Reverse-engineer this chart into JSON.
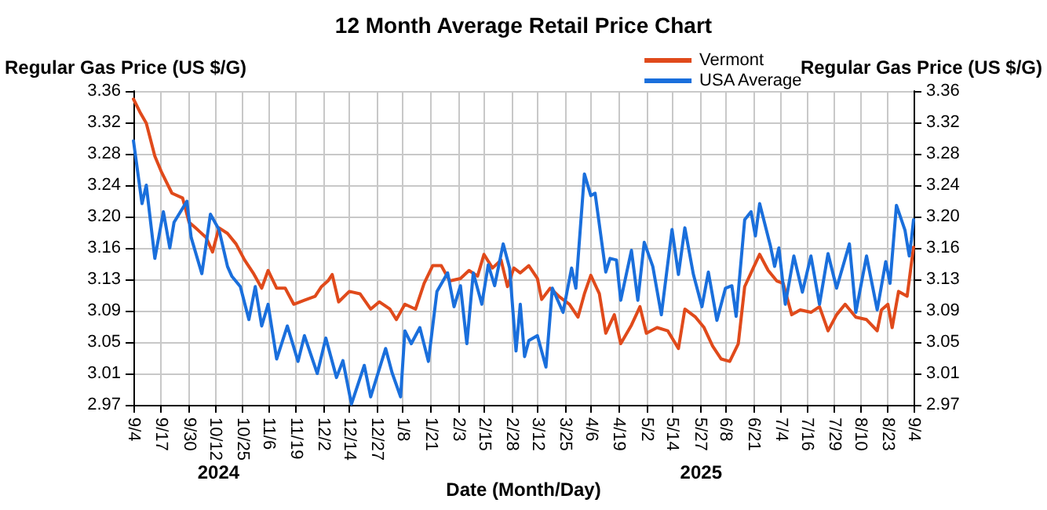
{
  "chart_data": {
    "type": "line",
    "title": "12 Month Average Retail Price Chart",
    "xlabel": "Date (Month/Day)",
    "ylabel": "Regular Gas Price (US $/G)",
    "y2label": "Regular Gas Price (US $/G)",
    "annotations": [
      "2024",
      "2025"
    ],
    "xlim": [
      "2024-09-04",
      "2025-09-04"
    ],
    "xticks": [
      {
        "value": "2024-09-04",
        "label": "9/4"
      },
      {
        "value": "2024-09-17",
        "label": "9/17"
      },
      {
        "value": "2024-09-30",
        "label": "9/30"
      },
      {
        "value": "2024-10-12",
        "label": "10/12"
      },
      {
        "value": "2024-10-25",
        "label": "10/25"
      },
      {
        "value": "2024-11-06",
        "label": "11/6"
      },
      {
        "value": "2024-11-19",
        "label": "11/19"
      },
      {
        "value": "2024-12-02",
        "label": "12/2"
      },
      {
        "value": "2024-12-14",
        "label": "12/14"
      },
      {
        "value": "2024-12-27",
        "label": "12/27"
      },
      {
        "value": "2025-01-08",
        "label": "1/8"
      },
      {
        "value": "2025-01-21",
        "label": "1/21"
      },
      {
        "value": "2025-02-03",
        "label": "2/3"
      },
      {
        "value": "2025-02-15",
        "label": "2/15"
      },
      {
        "value": "2025-02-28",
        "label": "2/28"
      },
      {
        "value": "2025-03-12",
        "label": "3/12"
      },
      {
        "value": "2025-03-25",
        "label": "3/25"
      },
      {
        "value": "2025-04-06",
        "label": "4/6"
      },
      {
        "value": "2025-04-19",
        "label": "4/19"
      },
      {
        "value": "2025-05-02",
        "label": "5/2"
      },
      {
        "value": "2025-05-14",
        "label": "5/14"
      },
      {
        "value": "2025-05-27",
        "label": "5/27"
      },
      {
        "value": "2025-06-08",
        "label": "6/8"
      },
      {
        "value": "2025-06-21",
        "label": "6/21"
      },
      {
        "value": "2025-07-04",
        "label": "7/4"
      },
      {
        "value": "2025-07-16",
        "label": "7/16"
      },
      {
        "value": "2025-07-29",
        "label": "7/29"
      },
      {
        "value": "2025-08-10",
        "label": "8/10"
      },
      {
        "value": "2025-08-23",
        "label": "8/23"
      },
      {
        "value": "2025-09-04",
        "label": "9/4"
      }
    ],
    "ylim": [
      2.97,
      3.36
    ],
    "yticks": [
      {
        "value": 2.97,
        "label": "2.97"
      },
      {
        "value": 3.009,
        "label": "3.01"
      },
      {
        "value": 3.048,
        "label": "3.05"
      },
      {
        "value": 3.087,
        "label": "3.09"
      },
      {
        "value": 3.126,
        "label": "3.13"
      },
      {
        "value": 3.165,
        "label": "3.16"
      },
      {
        "value": 3.204,
        "label": "3.20"
      },
      {
        "value": 3.243,
        "label": "3.24"
      },
      {
        "value": 3.282,
        "label": "3.28"
      },
      {
        "value": 3.321,
        "label": "3.32"
      },
      {
        "value": 3.36,
        "label": "3.36"
      }
    ],
    "y2lim": [
      2.97,
      3.36
    ],
    "y2ticks": [
      {
        "value": 2.97,
        "label": "2.97"
      },
      {
        "value": 3.009,
        "label": "3.01"
      },
      {
        "value": 3.048,
        "label": "3.05"
      },
      {
        "value": 3.087,
        "label": "3.09"
      },
      {
        "value": 3.126,
        "label": "3.13"
      },
      {
        "value": 3.165,
        "label": "3.16"
      },
      {
        "value": 3.204,
        "label": "3.20"
      },
      {
        "value": 3.243,
        "label": "3.24"
      },
      {
        "value": 3.282,
        "label": "3.28"
      },
      {
        "value": 3.321,
        "label": "3.32"
      },
      {
        "value": 3.36,
        "label": "3.36"
      }
    ],
    "grid": true,
    "legend": "top right",
    "marker": "none",
    "line_style": "solid",
    "series": [
      {
        "name": "Vermont",
        "color": "#e04a1b",
        "x": [
          "2024-09-04",
          "2024-09-07",
          "2024-09-10",
          "2024-09-14",
          "2024-09-17",
          "2024-09-22",
          "2024-09-27",
          "2024-09-30",
          "2024-10-03",
          "2024-10-08",
          "2024-10-11",
          "2024-10-14",
          "2024-10-18",
          "2024-10-22",
          "2024-10-26",
          "2024-10-30",
          "2024-11-03",
          "2024-11-06",
          "2024-11-10",
          "2024-11-14",
          "2024-11-18",
          "2024-11-23",
          "2024-11-28",
          "2024-12-01",
          "2024-12-04",
          "2024-12-06",
          "2024-12-09",
          "2024-12-14",
          "2024-12-19",
          "2024-12-24",
          "2024-12-28",
          "2025-01-02",
          "2025-01-05",
          "2025-01-09",
          "2025-01-14",
          "2025-01-18",
          "2025-01-22",
          "2025-01-26",
          "2025-01-30",
          "2025-02-04",
          "2025-02-08",
          "2025-02-12",
          "2025-02-15",
          "2025-02-19",
          "2025-02-23",
          "2025-02-26",
          "2025-03-01",
          "2025-03-04",
          "2025-03-08",
          "2025-03-12",
          "2025-03-14",
          "2025-03-18",
          "2025-03-22",
          "2025-03-27",
          "2025-03-31",
          "2025-04-03",
          "2025-04-06",
          "2025-04-10",
          "2025-04-13",
          "2025-04-17",
          "2025-04-20",
          "2025-04-25",
          "2025-04-29",
          "2025-05-02",
          "2025-05-07",
          "2025-05-12",
          "2025-05-17",
          "2025-05-20",
          "2025-05-25",
          "2025-05-29",
          "2025-06-02",
          "2025-06-06",
          "2025-06-10",
          "2025-06-14",
          "2025-06-17",
          "2025-06-21",
          "2025-06-24",
          "2025-06-28",
          "2025-07-02",
          "2025-07-05",
          "2025-07-09",
          "2025-07-13",
          "2025-07-18",
          "2025-07-22",
          "2025-07-26",
          "2025-07-30",
          "2025-08-03",
          "2025-08-08",
          "2025-08-13",
          "2025-08-18",
          "2025-08-20",
          "2025-08-23",
          "2025-08-25",
          "2025-08-28",
          "2025-09-01",
          "2025-09-04"
        ],
        "values": [
          3.35,
          3.334,
          3.32,
          3.279,
          3.26,
          3.233,
          3.227,
          3.197,
          3.19,
          3.178,
          3.16,
          3.19,
          3.183,
          3.17,
          3.15,
          3.134,
          3.115,
          3.137,
          3.115,
          3.115,
          3.095,
          3.1,
          3.105,
          3.117,
          3.124,
          3.132,
          3.098,
          3.111,
          3.108,
          3.089,
          3.098,
          3.089,
          3.076,
          3.095,
          3.089,
          3.121,
          3.143,
          3.143,
          3.124,
          3.127,
          3.137,
          3.13,
          3.157,
          3.14,
          3.15,
          3.117,
          3.14,
          3.134,
          3.143,
          3.127,
          3.101,
          3.115,
          3.105,
          3.095,
          3.079,
          3.108,
          3.131,
          3.108,
          3.059,
          3.082,
          3.046,
          3.069,
          3.092,
          3.059,
          3.066,
          3.062,
          3.04,
          3.089,
          3.079,
          3.066,
          3.043,
          3.027,
          3.024,
          3.046,
          3.117,
          3.14,
          3.157,
          3.137,
          3.124,
          3.121,
          3.082,
          3.088,
          3.085,
          3.092,
          3.062,
          3.082,
          3.095,
          3.079,
          3.076,
          3.062,
          3.088,
          3.095,
          3.066,
          3.111,
          3.105,
          3.166
        ]
      },
      {
        "name": "USA Average",
        "color": "#1a6fdc",
        "x": [
          "2024-09-04",
          "2024-09-08",
          "2024-09-10",
          "2024-09-14",
          "2024-09-18",
          "2024-09-21",
          "2024-09-23",
          "2024-09-29",
          "2024-10-01",
          "2024-10-06",
          "2024-10-10",
          "2024-10-14",
          "2024-10-18",
          "2024-10-20",
          "2024-10-24",
          "2024-10-28",
          "2024-10-31",
          "2024-11-03",
          "2024-11-06",
          "2024-11-10",
          "2024-11-15",
          "2024-11-20",
          "2024-11-23",
          "2024-11-29",
          "2024-12-03",
          "2024-12-08",
          "2024-12-11",
          "2024-12-15",
          "2024-12-21",
          "2024-12-24",
          "2024-12-31",
          "2025-01-03",
          "2025-01-07",
          "2025-01-09",
          "2025-01-12",
          "2025-01-16",
          "2025-01-20",
          "2025-01-24",
          "2025-01-29",
          "2025-02-01",
          "2025-02-04",
          "2025-02-07",
          "2025-02-10",
          "2025-02-14",
          "2025-02-17",
          "2025-02-20",
          "2025-02-24",
          "2025-02-27",
          "2025-03-02",
          "2025-03-04",
          "2025-03-06",
          "2025-03-08",
          "2025-03-12",
          "2025-03-16",
          "2025-03-19",
          "2025-03-24",
          "2025-03-28",
          "2025-03-30",
          "2025-04-03",
          "2025-04-06",
          "2025-04-08",
          "2025-04-13",
          "2025-04-15",
          "2025-04-18",
          "2025-04-20",
          "2025-04-25",
          "2025-04-28",
          "2025-05-01",
          "2025-05-05",
          "2025-05-09",
          "2025-05-14",
          "2025-05-17",
          "2025-05-20",
          "2025-05-24",
          "2025-05-28",
          "2025-05-31",
          "2025-06-04",
          "2025-06-08",
          "2025-06-11",
          "2025-06-13",
          "2025-06-17",
          "2025-06-20",
          "2025-06-22",
          "2025-06-24",
          "2025-06-29",
          "2025-07-01",
          "2025-07-03",
          "2025-07-06",
          "2025-07-10",
          "2025-07-14",
          "2025-07-18",
          "2025-07-22",
          "2025-07-26",
          "2025-07-30",
          "2025-08-05",
          "2025-08-08",
          "2025-08-13",
          "2025-08-18",
          "2025-08-22",
          "2025-08-24",
          "2025-08-27",
          "2025-08-31",
          "2025-09-02",
          "2025-09-03",
          "2025-09-04"
        ],
        "values": [
          3.298,
          3.22,
          3.243,
          3.152,
          3.21,
          3.165,
          3.197,
          3.223,
          3.178,
          3.133,
          3.207,
          3.188,
          3.142,
          3.13,
          3.117,
          3.076,
          3.117,
          3.068,
          3.095,
          3.027,
          3.068,
          3.024,
          3.056,
          3.009,
          3.053,
          3.004,
          3.025,
          2.971,
          3.019,
          2.98,
          3.04,
          3.01,
          2.98,
          3.062,
          3.046,
          3.066,
          3.024,
          3.111,
          3.134,
          3.092,
          3.118,
          3.046,
          3.134,
          3.095,
          3.144,
          3.118,
          3.17,
          3.14,
          3.037,
          3.095,
          3.03,
          3.05,
          3.056,
          3.017,
          3.115,
          3.085,
          3.14,
          3.115,
          3.257,
          3.23,
          3.233,
          3.135,
          3.152,
          3.15,
          3.1,
          3.162,
          3.1,
          3.172,
          3.142,
          3.082,
          3.188,
          3.132,
          3.19,
          3.132,
          3.092,
          3.135,
          3.075,
          3.115,
          3.118,
          3.08,
          3.2,
          3.21,
          3.18,
          3.22,
          3.168,
          3.142,
          3.165,
          3.095,
          3.155,
          3.11,
          3.155,
          3.095,
          3.158,
          3.115,
          3.17,
          3.085,
          3.155,
          3.088,
          3.148,
          3.121,
          3.218,
          3.187,
          3.155,
          3.175,
          3.2
        ]
      }
    ]
  }
}
